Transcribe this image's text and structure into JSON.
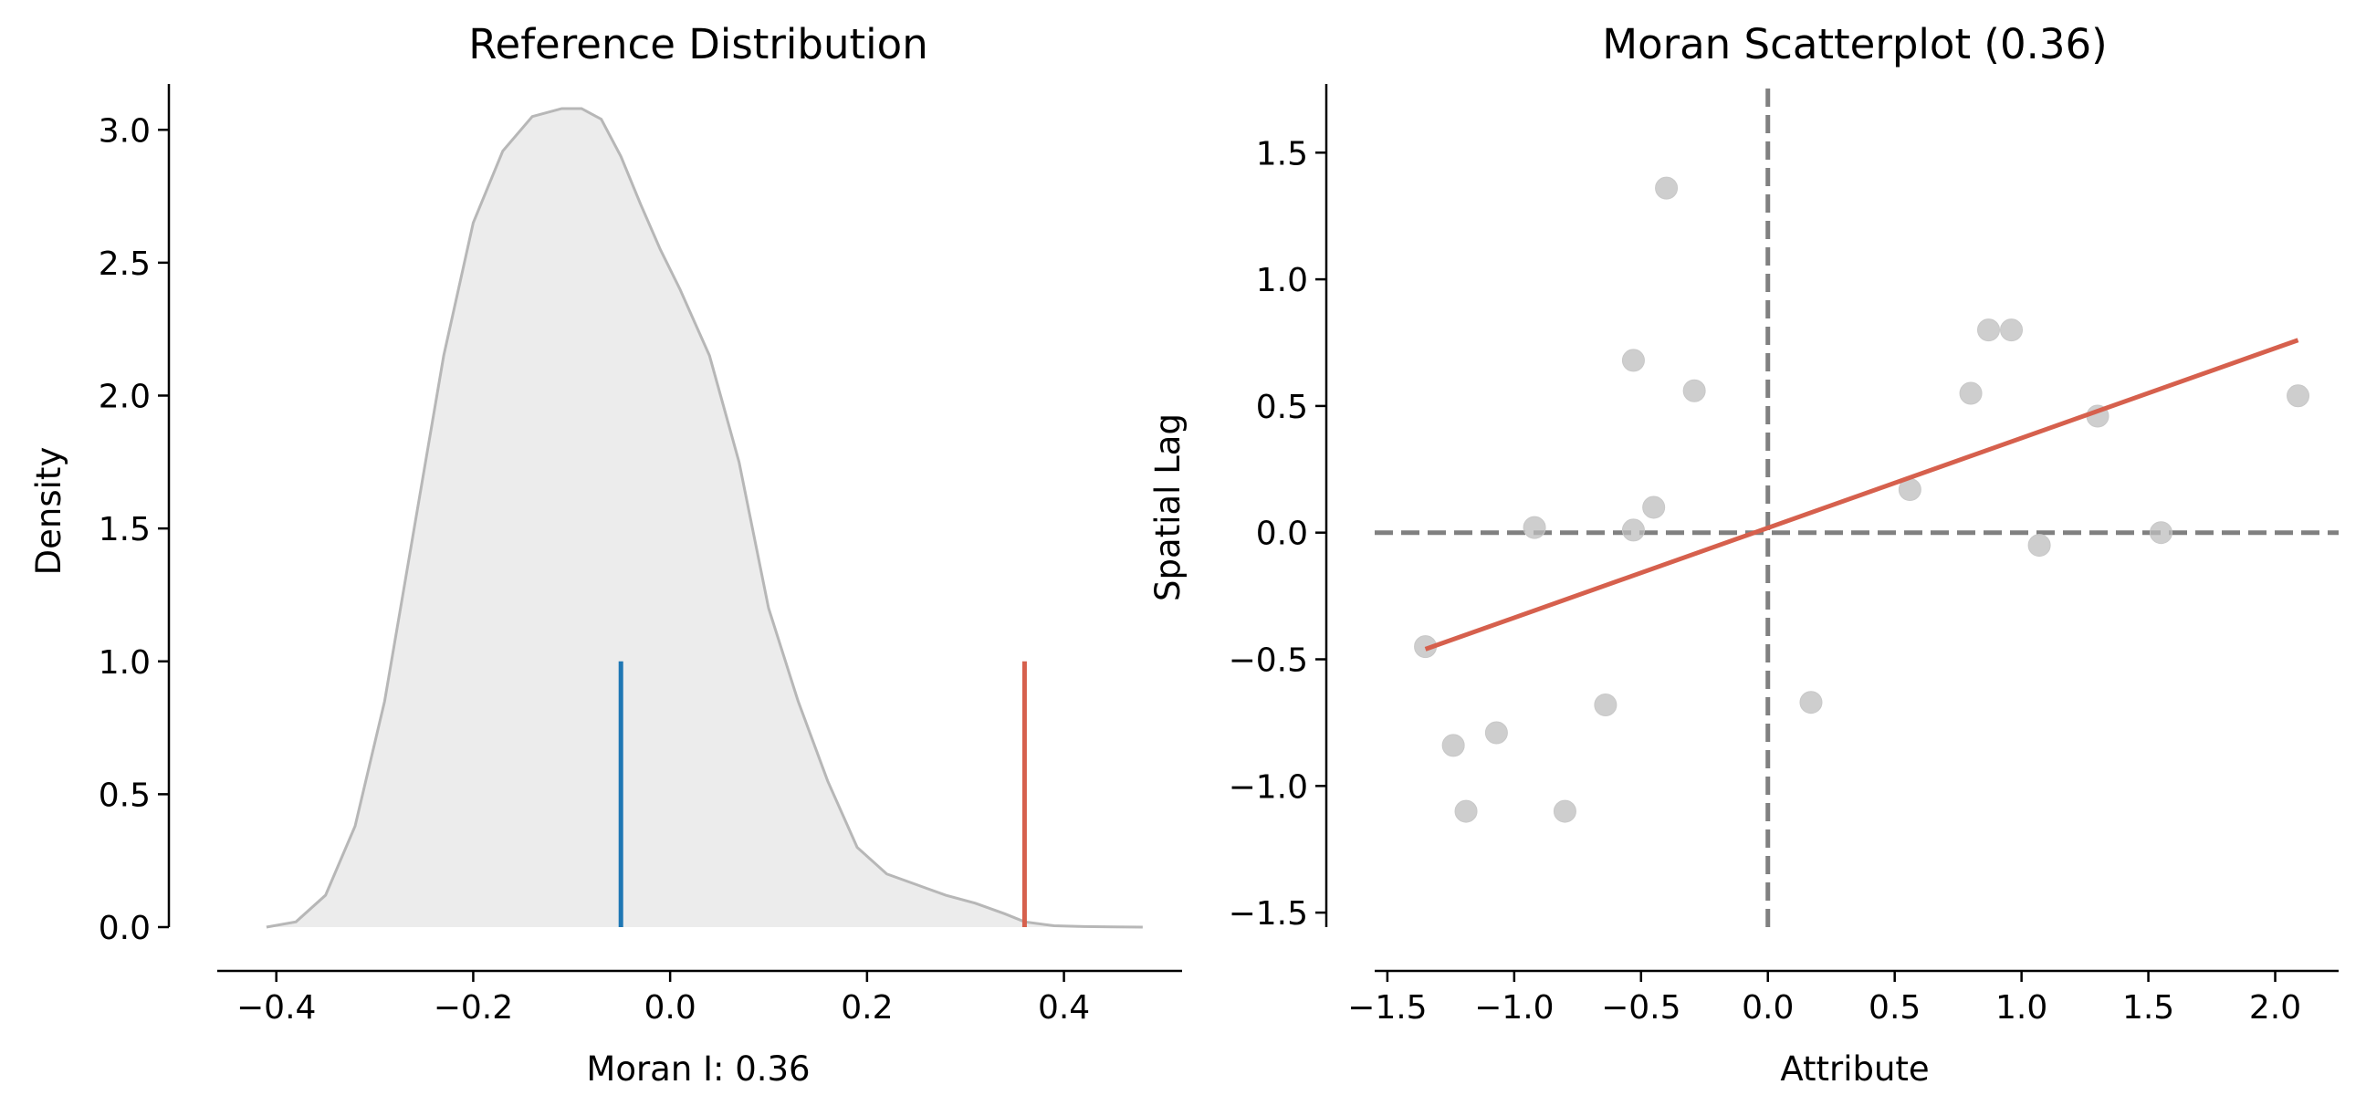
{
  "chart_data": [
    {
      "type": "area",
      "title": "Reference Distribution",
      "xlabel": "Moran I: 0.36",
      "ylabel": "Density",
      "xlim": [
        -0.46,
        0.52
      ],
      "ylim": [
        0,
        3.2
      ],
      "xticks": [
        -0.4,
        -0.2,
        0.0,
        0.2,
        0.4
      ],
      "xtick_labels": [
        "−0.4",
        "−0.2",
        "0.0",
        "0.2",
        "0.4"
      ],
      "yticks": [
        0.0,
        0.5,
        1.0,
        1.5,
        2.0,
        2.5,
        3.0
      ],
      "ytick_labels": [
        "0.0",
        "0.5",
        "1.0",
        "1.5",
        "2.0",
        "2.5",
        "3.0"
      ],
      "grid": false,
      "density_curve": {
        "x": [
          -0.41,
          -0.38,
          -0.35,
          -0.32,
          -0.29,
          -0.26,
          -0.23,
          -0.2,
          -0.17,
          -0.14,
          -0.11,
          -0.09,
          -0.07,
          -0.05,
          -0.03,
          -0.01,
          0.01,
          0.04,
          0.07,
          0.1,
          0.13,
          0.16,
          0.19,
          0.22,
          0.25,
          0.28,
          0.31,
          0.34,
          0.36,
          0.39,
          0.42,
          0.45,
          0.48
        ],
        "y": [
          0.0,
          0.02,
          0.12,
          0.38,
          0.85,
          1.5,
          2.15,
          2.65,
          2.92,
          3.05,
          3.08,
          3.08,
          3.04,
          2.9,
          2.72,
          2.55,
          2.4,
          2.15,
          1.75,
          1.2,
          0.85,
          0.55,
          0.3,
          0.2,
          0.16,
          0.12,
          0.09,
          0.05,
          0.02,
          0.005,
          0.002,
          0.001,
          0.0
        ],
        "fill_color": "#ececec",
        "line_color": "#b7b7b7"
      },
      "markers": [
        {
          "x": -0.05,
          "height": 1.0,
          "color": "#1f77b4"
        },
        {
          "x": 0.36,
          "height": 1.0,
          "color": "#d6604d"
        }
      ]
    },
    {
      "type": "scatter",
      "title": "Moran Scatterplot (0.36)",
      "xlabel": "Attribute",
      "ylabel": "Spatial Lag",
      "xlim": [
        -1.55,
        2.25
      ],
      "ylim": [
        -1.55,
        1.8
      ],
      "xticks": [
        -1.5,
        -1.0,
        -0.5,
        0.0,
        0.5,
        1.0,
        1.5,
        2.0
      ],
      "xtick_labels": [
        "−1.5",
        "−1.0",
        "−0.5",
        "0.0",
        "0.5",
        "1.0",
        "1.5",
        "2.0"
      ],
      "yticks": [
        -1.5,
        -1.0,
        -0.5,
        0.0,
        0.5,
        1.0,
        1.5
      ],
      "ytick_labels": [
        "−1.5",
        "−1.0",
        "−0.5",
        "0.0",
        "0.5",
        "1.0",
        "1.5"
      ],
      "grid": false,
      "point_color": "#bdbdbd",
      "points": {
        "x": [
          -0.4,
          -0.53,
          -0.29,
          -0.45,
          -0.53,
          -0.92,
          -1.35,
          -1.24,
          -1.07,
          -1.19,
          -0.8,
          -0.64,
          0.17,
          0.56,
          0.8,
          0.87,
          0.96,
          1.07,
          1.3,
          1.55,
          2.09
        ],
        "y": [
          1.36,
          0.68,
          0.56,
          0.1,
          0.01,
          0.02,
          -0.45,
          -0.84,
          -0.79,
          -1.1,
          -1.1,
          -0.68,
          -0.67,
          0.17,
          0.55,
          0.8,
          0.8,
          -0.05,
          0.46,
          0.0,
          0.54
        ]
      },
      "fit_line": {
        "x": [
          -1.35,
          2.09
        ],
        "y": [
          -0.46,
          0.76
        ],
        "color": "#d6604d"
      },
      "reference_lines": [
        {
          "orientation": "horizontal",
          "value": 0.0,
          "style": "dashed",
          "color": "#808080"
        },
        {
          "orientation": "vertical",
          "value": 0.0,
          "style": "dashed",
          "color": "#808080"
        }
      ]
    }
  ]
}
